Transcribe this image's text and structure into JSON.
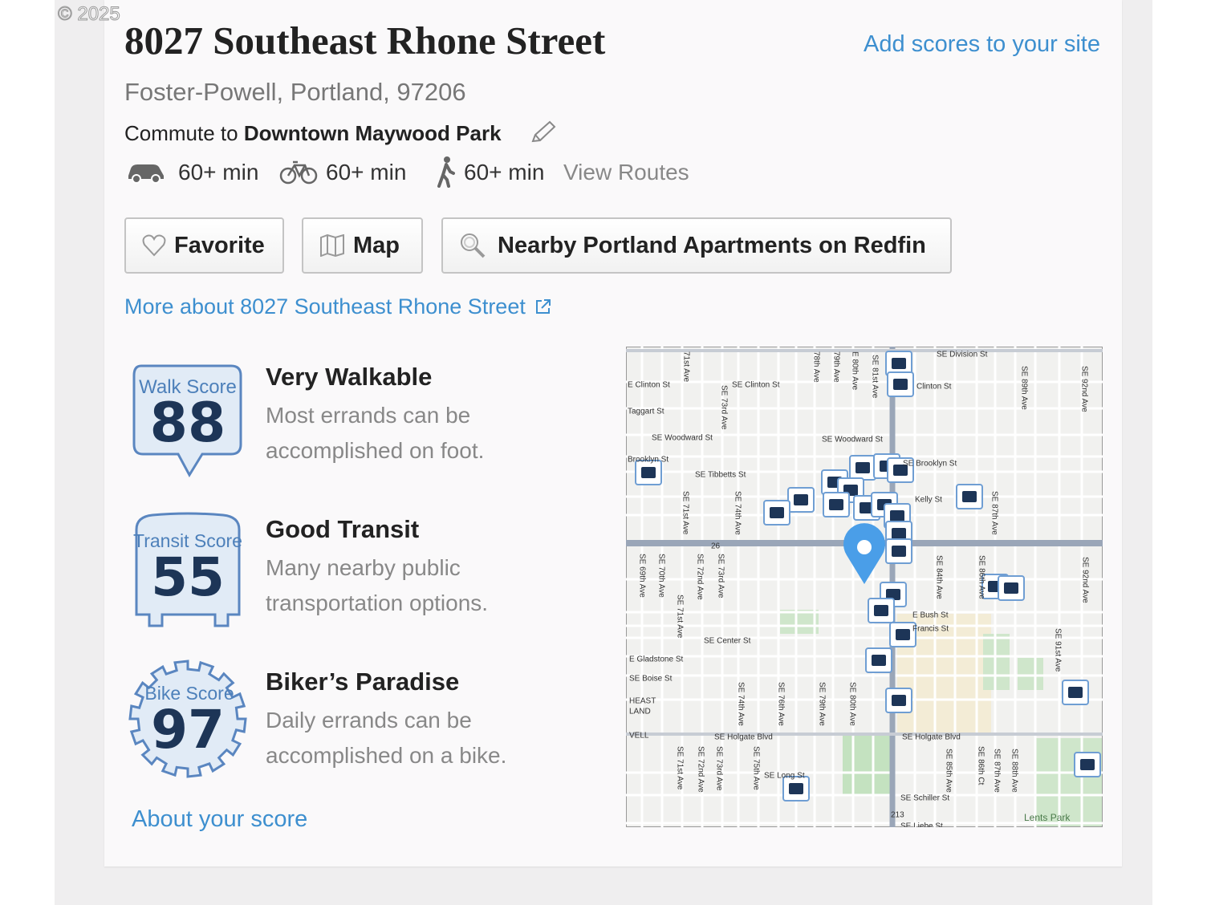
{
  "watermark": "© 2025",
  "header": {
    "title": "8027 Southeast Rhone Street",
    "add_scores_link": "Add scores to your site",
    "location": "Foster-Powell, Portland, 97206",
    "commute_prefix": "Commute to",
    "commute_destination": "Downtown Maywood Park"
  },
  "commute": {
    "times": [
      "60+ min",
      "60+ min",
      "60+ min"
    ],
    "view_routes": "View Routes"
  },
  "buttons": [
    "Favorite",
    "Map",
    "Nearby Portland Apartments on Redfin"
  ],
  "more_link": "More about 8027 Southeast Rhone Street",
  "scores": [
    {
      "badge": "Walk Score",
      "score": 88,
      "title": "Very Walkable",
      "description": "Most errands can be accomplished on foot."
    },
    {
      "badge": "Transit Score",
      "score": 55,
      "title": "Good Transit",
      "description": "Many nearby public transportation options."
    },
    {
      "badge": "Bike Score",
      "score": 97,
      "title": "Biker’s Paradise",
      "description": "Daily errands can be accomplished on a bike."
    }
  ],
  "about_link": "About your score",
  "map": {
    "labels": [
      "SE Division St",
      "E Clinton St",
      "SE Clinton St",
      "Clinton St",
      "Taggart St",
      "SE Woodward St",
      "SE Woodward St",
      "Brooklyn St",
      "SE Brooklyn St",
      "SE Tibbetts St",
      "Kelly St",
      "E Bush St",
      "Francis St",
      "SE Center St",
      "E Gladstone St",
      "SE Boise St",
      "HEAST",
      "LAND",
      "VELL",
      "SE Holgate Blvd",
      "SE Holgate Blvd",
      "SE Long St",
      "SE Schiller St",
      "SE Liebe St",
      "Lents Park",
      "26",
      "213",
      "71st Ave",
      "SE 73rd Ave",
      "78th Ave",
      "79th Ave",
      "E 80th Ave",
      "SE 81st Ave",
      "SE 89th Ave",
      "SE 92nd Ave",
      "SE 71st Ave",
      "SE 74th Ave",
      "SE 87th Ave",
      "SE 69th Ave",
      "SE 70th Ave",
      "SE 72nd Ave",
      "SE 73rd Ave",
      "SE 84th Ave",
      "SE 86th Ave",
      "SE 92nd Ave",
      "SE 71st Ave",
      "SE 91st Ave",
      "SE 74th Ave",
      "SE 76th Ave",
      "SE 79th Ave",
      "SE 80th Ave",
      "SE 71st Ave",
      "SE 72nd Ave",
      "SE 73rd Ave",
      "SE 75th Ave",
      "SE 85th Ave",
      "SE 86th Ct",
      "SE 87th Ave",
      "SE 88th Ave"
    ]
  }
}
